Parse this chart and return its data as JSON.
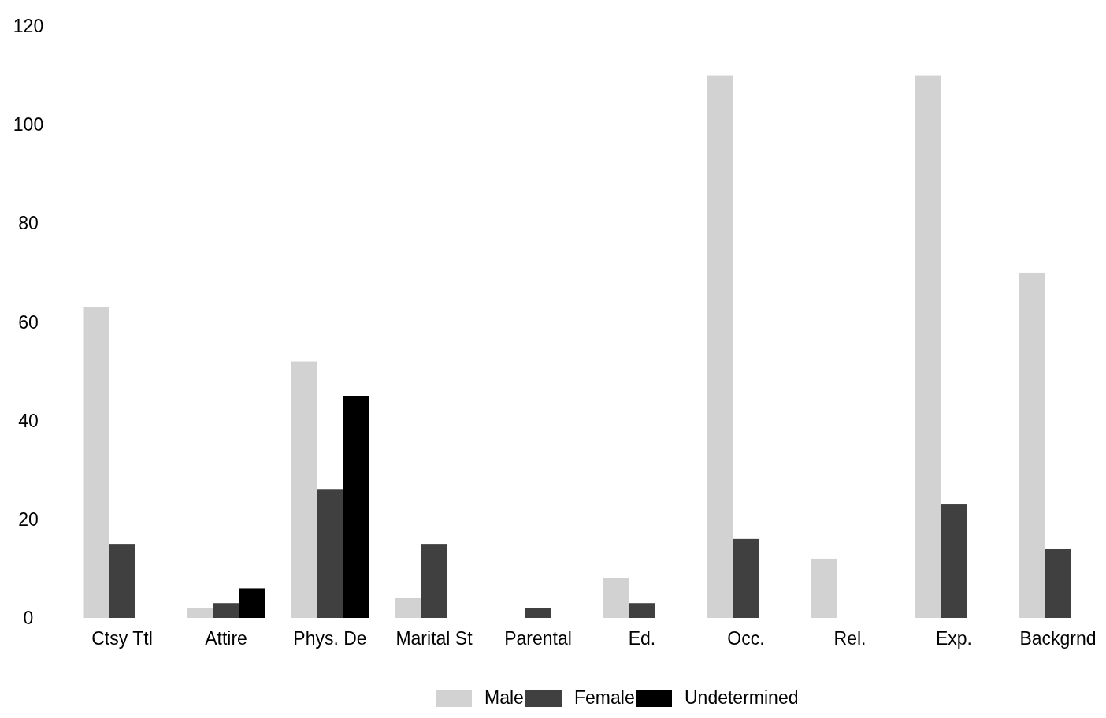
{
  "chart_data": {
    "type": "bar",
    "categories": [
      "Ctsy Ttl",
      "Attire",
      "Phys. De",
      "Marital St",
      "Parental",
      "Ed.",
      "Occ.",
      "Rel.",
      "Exp.",
      "Backgrnd"
    ],
    "series": [
      {
        "name": "Male",
        "color": "#d2d2d2",
        "values": [
          63,
          2,
          52,
          4,
          null,
          8,
          110,
          12,
          110,
          70
        ]
      },
      {
        "name": "Female",
        "color": "#404040",
        "values": [
          15,
          3,
          26,
          15,
          2,
          3,
          16,
          null,
          23,
          14
        ]
      },
      {
        "name": "Undetermined",
        "color": "#000000",
        "values": [
          null,
          6,
          45,
          null,
          null,
          null,
          null,
          null,
          null,
          null
        ]
      }
    ],
    "ylim": [
      0,
      120
    ],
    "yticks": [
      0,
      20,
      40,
      60,
      80,
      100,
      120
    ],
    "legend": "bottom"
  }
}
